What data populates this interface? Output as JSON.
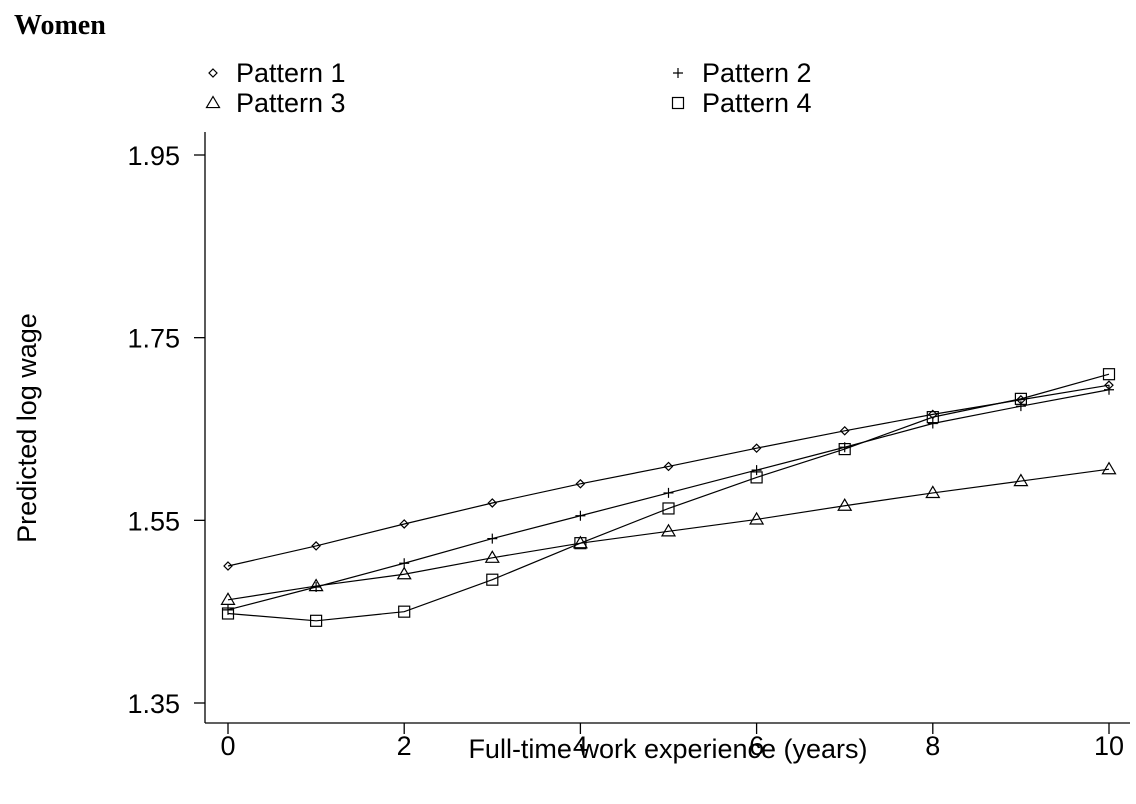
{
  "heading": "Women",
  "chart_data": {
    "type": "line",
    "title": "",
    "xlabel": "Full-time work experience (years)",
    "ylabel": "Predicted log wage",
    "x": [
      0,
      1,
      2,
      3,
      4,
      5,
      6,
      7,
      8,
      9,
      10
    ],
    "xticks": [
      0,
      2,
      4,
      6,
      8,
      10
    ],
    "yticks": [
      1.35,
      1.55,
      1.75,
      1.95
    ],
    "xlim": [
      -0.25,
      10.25
    ],
    "ylim": [
      1.33,
      1.98
    ],
    "grid": false,
    "legend_placement": "top",
    "series": [
      {
        "name": "Pattern 1",
        "marker": "diamond",
        "values": [
          1.5,
          1.522,
          1.546,
          1.569,
          1.59,
          1.609,
          1.629,
          1.648,
          1.666,
          1.682,
          1.698
        ]
      },
      {
        "name": "Pattern 2",
        "marker": "plus",
        "values": [
          1.452,
          1.477,
          1.503,
          1.53,
          1.555,
          1.58,
          1.605,
          1.63,
          1.656,
          1.675,
          1.693
        ]
      },
      {
        "name": "Pattern 3",
        "marker": "triangle",
        "values": [
          1.463,
          1.478,
          1.491,
          1.509,
          1.525,
          1.538,
          1.551,
          1.566,
          1.58,
          1.593,
          1.606
        ]
      },
      {
        "name": "Pattern 4",
        "marker": "square",
        "values": [
          1.448,
          1.44,
          1.45,
          1.485,
          1.525,
          1.563,
          1.597,
          1.628,
          1.663,
          1.683,
          1.71
        ]
      }
    ]
  }
}
